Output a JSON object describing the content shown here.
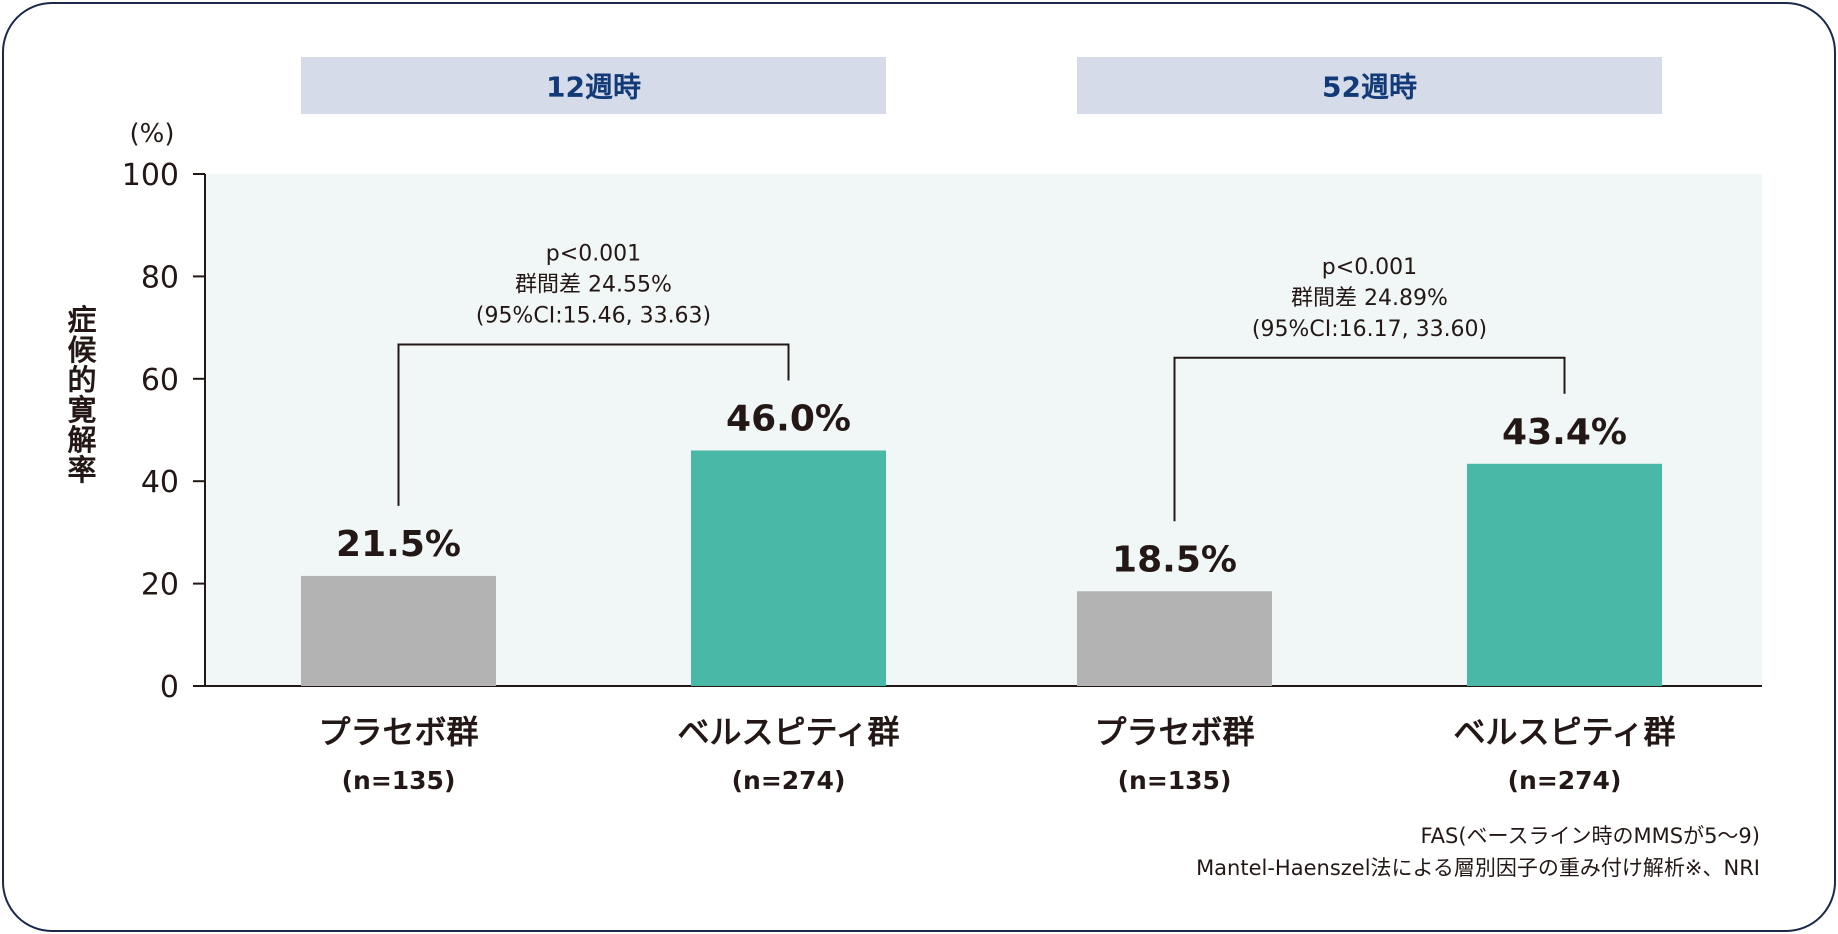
{
  "chart_data": {
    "type": "bar",
    "y_unit": "(%)",
    "ylabel": "症候的寛解率",
    "ylim": [
      0,
      100
    ],
    "yticks": [
      "0",
      "20",
      "40",
      "60",
      "80",
      "100"
    ],
    "groups": [
      {
        "header": "12週時",
        "categories": [
          {
            "label": "プラセボ群",
            "n": "(n=135)"
          },
          {
            "label": "ベルスピティ群",
            "n": "(n=274)"
          }
        ],
        "values": [
          21.5,
          46.0
        ],
        "value_labels": [
          "21.5%",
          "46.0%"
        ],
        "stats": [
          "p<0.001",
          "群間差 24.55%",
          "(95%CI:15.46, 33.63)"
        ]
      },
      {
        "header": "52週時",
        "categories": [
          {
            "label": "プラセボ群",
            "n": "(n=135)"
          },
          {
            "label": "ベルスピティ群",
            "n": "(n=274)"
          }
        ],
        "values": [
          18.5,
          43.4
        ],
        "value_labels": [
          "18.5%",
          "43.4%"
        ],
        "stats": [
          "p<0.001",
          "群間差 24.89%",
          "(95%CI:16.17, 33.60)"
        ]
      }
    ],
    "colors": {
      "placebo": "#b3b3b3",
      "treatment": "#49b8a6",
      "plot_background": "#f1f7f6",
      "header_background": "#d5dbe8",
      "header_text": "#123a78",
      "text": "#231815",
      "border": "#1b2a4a"
    },
    "grid": false,
    "legend": "none"
  },
  "footnotes": [
    "FAS(ベースライン時のMMSが5〜9)",
    "Mantel-Haenszel法による層別因子の重み付け解析※、NRI"
  ]
}
